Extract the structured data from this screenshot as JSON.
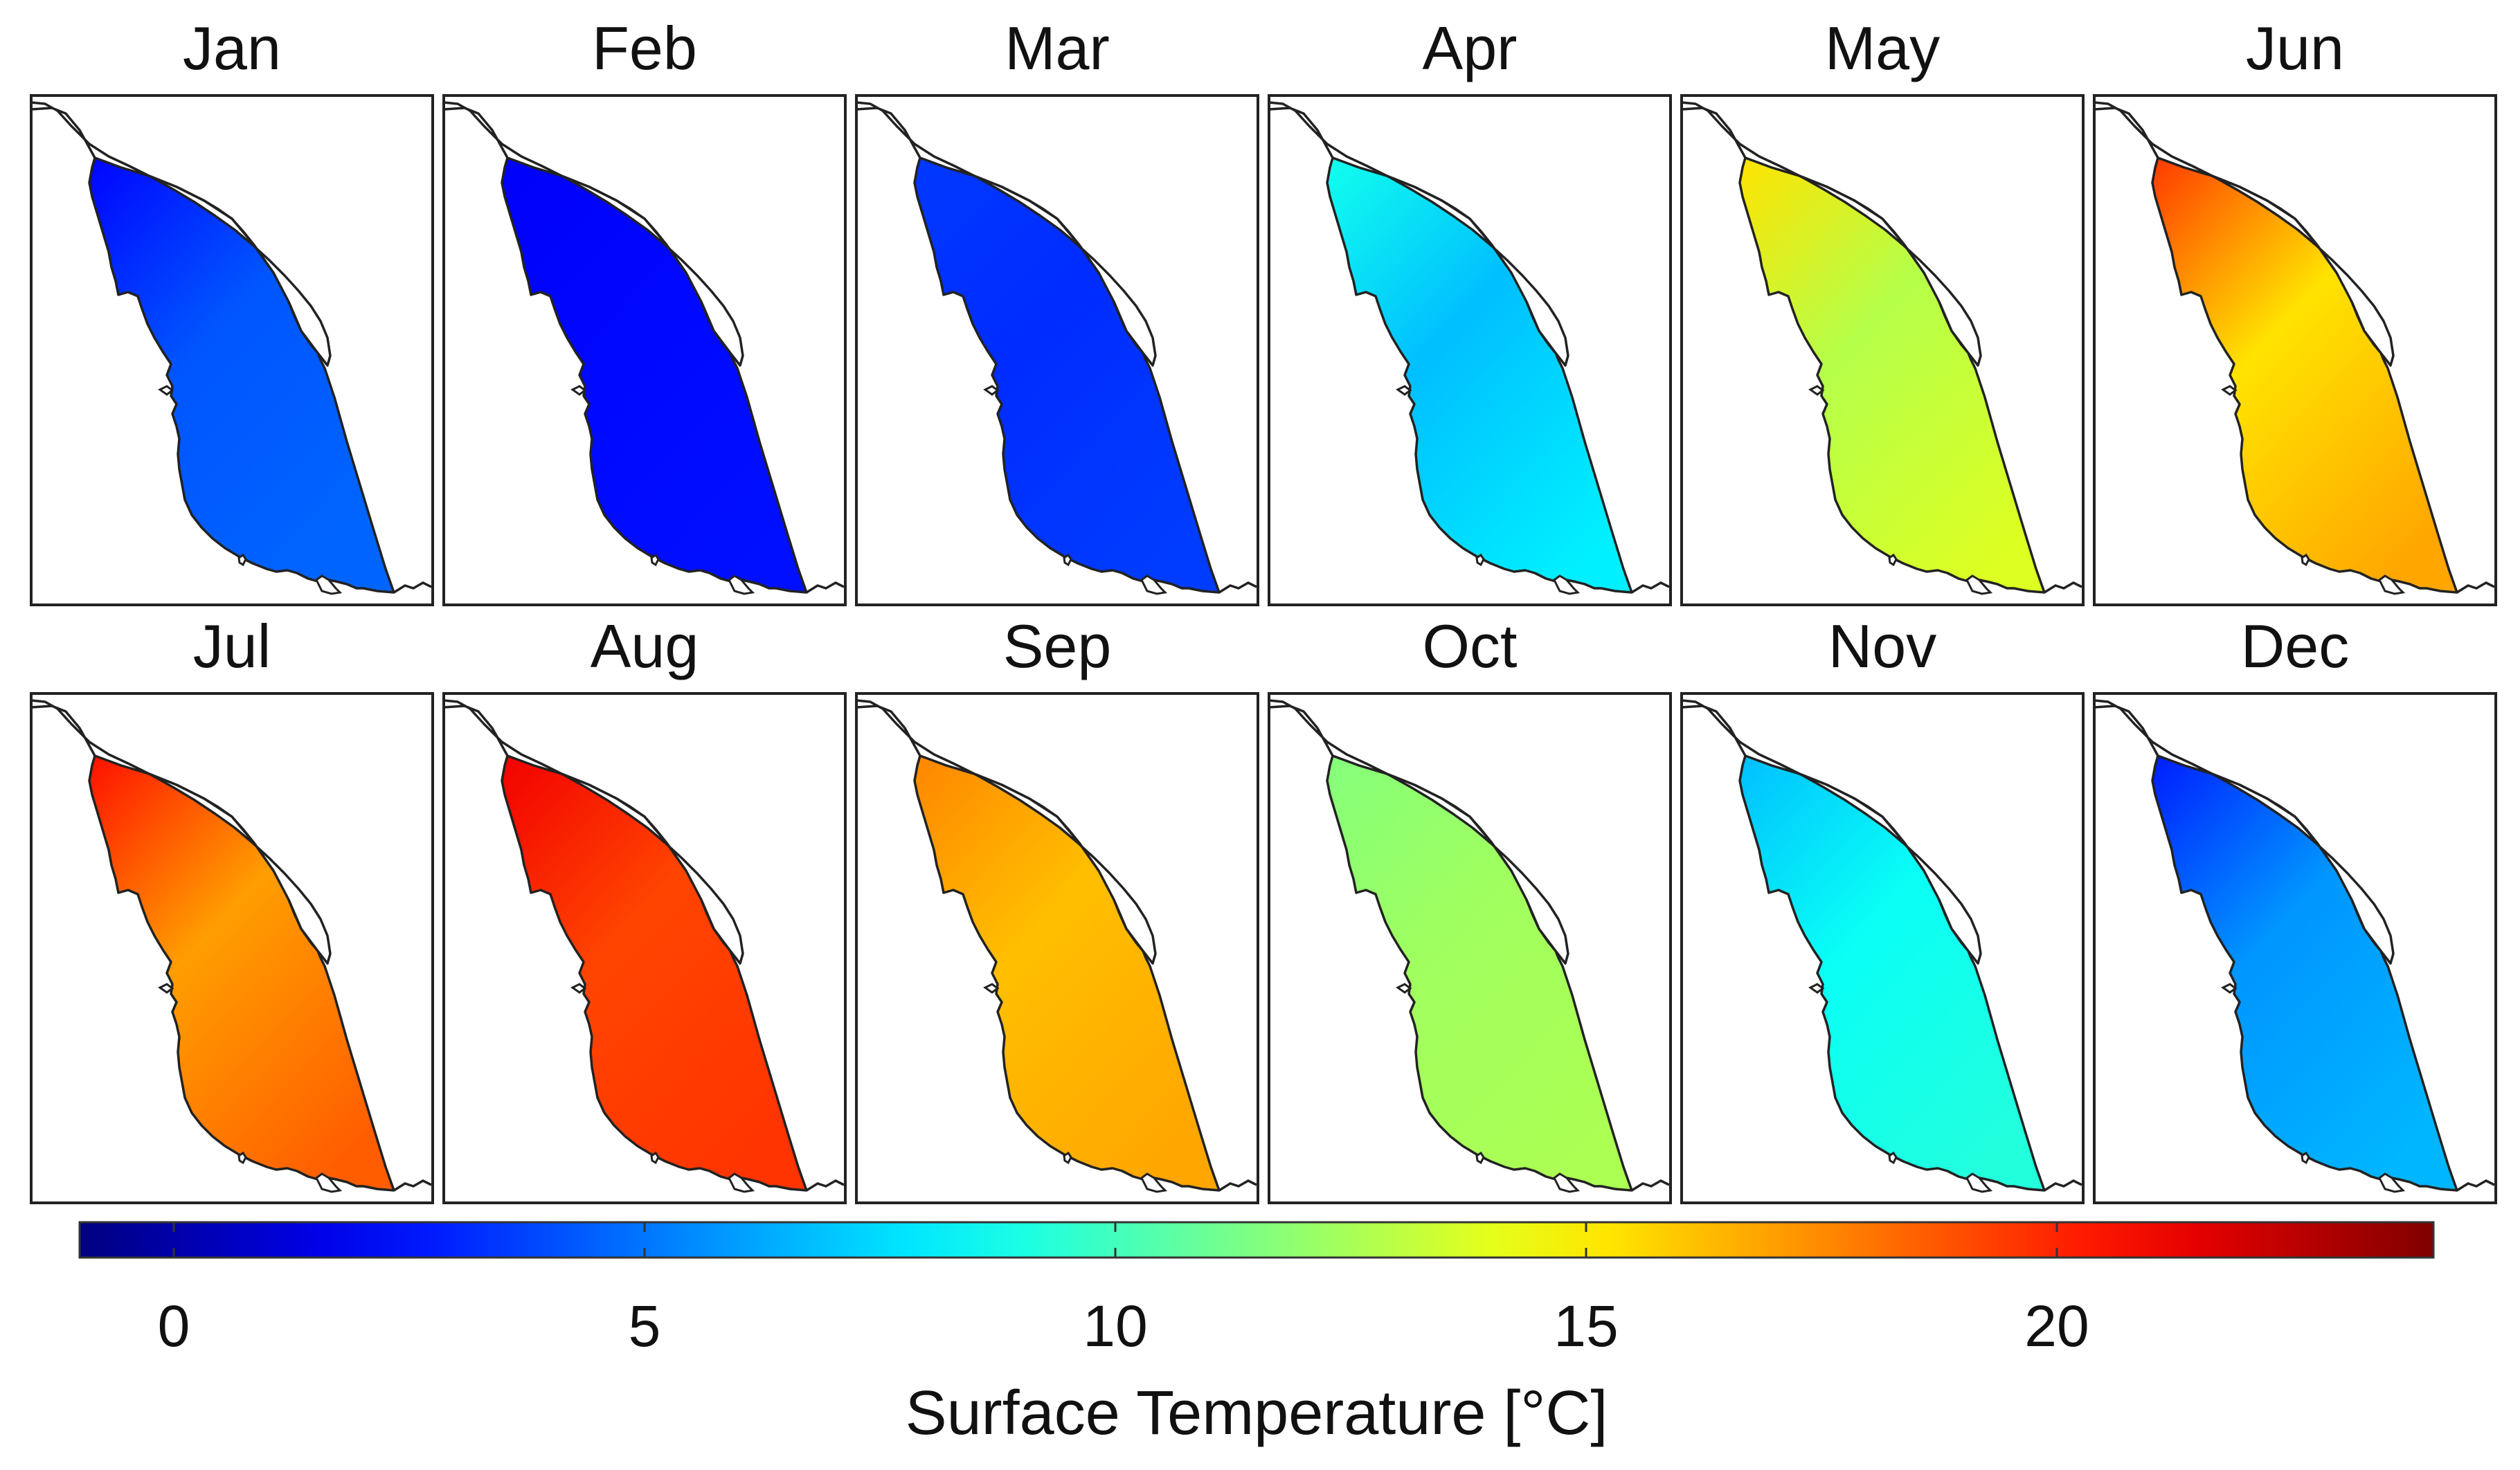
{
  "chart_data": {
    "type": "heatmap",
    "title": "",
    "panels": [
      {
        "month": "Jan",
        "values": [
          2.2,
          4.2,
          4.6
        ]
      },
      {
        "month": "Feb",
        "values": [
          2.0,
          2.3,
          2.5
        ]
      },
      {
        "month": "Mar",
        "values": [
          3.5,
          3.2,
          3.6
        ]
      },
      {
        "month": "Apr",
        "values": [
          8.8,
          6.8,
          8.0
        ]
      },
      {
        "month": "May",
        "values": [
          15.3,
          12.8,
          13.8
        ]
      },
      {
        "month": "Jun",
        "values": [
          19.5,
          15.3,
          16.8
        ]
      },
      {
        "month": "Jul",
        "values": [
          20.5,
          17.0,
          18.6
        ]
      },
      {
        "month": "Aug",
        "values": [
          21.2,
          19.2,
          19.6
        ]
      },
      {
        "month": "Sep",
        "values": [
          17.6,
          16.2,
          16.8
        ]
      },
      {
        "month": "Oct",
        "values": [
          11.6,
          12.3,
          12.6
        ]
      },
      {
        "month": "Nov",
        "values": [
          6.8,
          8.6,
          9.2
        ]
      },
      {
        "month": "Dec",
        "values": [
          2.8,
          5.8,
          6.6
        ]
      }
    ],
    "colorbar": {
      "label": "Surface Temperature [°C]",
      "range": [
        -1,
        24
      ],
      "ticks": [
        0,
        5,
        10,
        15,
        20
      ],
      "tick_labels": [
        "0",
        "5",
        "10",
        "15",
        "20"
      ],
      "colormap": "jet"
    }
  }
}
